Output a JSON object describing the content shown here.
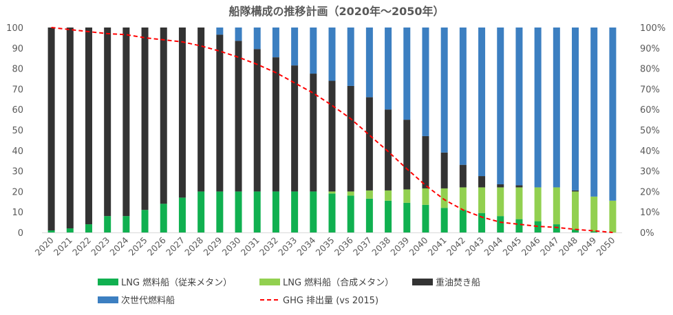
{
  "chart_data": {
    "type": "bar",
    "stacked": true,
    "title": "船隊構成の推移計画（2020年～2050年）",
    "categories": [
      "2020",
      "2021",
      "2022",
      "2023",
      "2024",
      "2025",
      "2026",
      "2027",
      "2028",
      "2029",
      "2030",
      "2031",
      "2032",
      "2033",
      "2034",
      "2035",
      "2036",
      "2037",
      "2038",
      "2039",
      "2040",
      "2041",
      "2042",
      "2043",
      "2044",
      "2045",
      "2046",
      "2047",
      "2048",
      "2049",
      "2050"
    ],
    "ylim": [
      0,
      100
    ],
    "y_ticks": [
      "0",
      "10",
      "20",
      "30",
      "40",
      "50",
      "60",
      "70",
      "80",
      "90",
      "100"
    ],
    "y2lim": [
      0,
      100
    ],
    "y2_ticks": [
      "0%",
      "10%",
      "20%",
      "30%",
      "40%",
      "50%",
      "60%",
      "70%",
      "80%",
      "90%",
      "100%"
    ],
    "grid": false,
    "legend_position": "bottom",
    "series": [
      {
        "name": "LNG 燃料船（従来メタン）",
        "color": "#10b050",
        "values": [
          1,
          2,
          4,
          8,
          8,
          11,
          14,
          17,
          20,
          20,
          20,
          20,
          20,
          20,
          20,
          19,
          18,
          16.5,
          15.5,
          14.5,
          13.5,
          12,
          11,
          9.5,
          8,
          6.5,
          5.5,
          4,
          1.5,
          0.5,
          0
        ]
      },
      {
        "name": "LNG 燃料船（合成メタン）",
        "color": "#92d050",
        "values": [
          0,
          0,
          0,
          0,
          0,
          0,
          0,
          0,
          0,
          0,
          0,
          0,
          0,
          0,
          0,
          1,
          2,
          4,
          5,
          6.5,
          8,
          9.5,
          11,
          12.5,
          14,
          15.5,
          16.5,
          18,
          18.5,
          17,
          15.5
        ]
      },
      {
        "name": "重油焚き船",
        "color": "#333333",
        "values": [
          99,
          98,
          96,
          92,
          92,
          89,
          86,
          83,
          80,
          76.5,
          73.5,
          69.5,
          65.5,
          61.5,
          57.5,
          54,
          51.5,
          45.5,
          39.5,
          34,
          25.5,
          17.5,
          11,
          5.5,
          1.5,
          1,
          0,
          0,
          0.5,
          0,
          0
        ]
      },
      {
        "name": "次世代燃料船",
        "color": "#3c7fc1",
        "values": [
          0,
          0,
          0,
          0,
          0,
          0,
          0,
          0,
          0,
          3.5,
          6.5,
          10.5,
          14.5,
          18.5,
          22.5,
          26,
          28.5,
          34,
          40,
          45,
          53,
          61,
          67,
          72.5,
          76.5,
          77,
          78,
          78,
          79.5,
          82.5,
          84.5
        ]
      }
    ],
    "line": {
      "name": "GHG 排出量 (vs 2015)",
      "color": "#ff0000",
      "axis": "right",
      "unit": "%",
      "values": [
        100,
        99,
        98,
        97,
        96.5,
        95,
        94,
        93,
        91,
        88.5,
        85.5,
        82,
        78,
        73,
        68,
        62,
        55.5,
        47.5,
        39.5,
        31,
        23,
        16,
        11,
        7.5,
        5,
        4,
        3,
        2.5,
        1.5,
        0.8,
        0
      ]
    }
  }
}
